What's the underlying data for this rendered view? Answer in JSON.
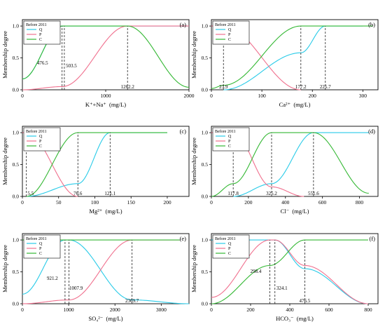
{
  "figure": {
    "legend_title": "Before 2011",
    "ylabel": "Membership degree",
    "colors": {
      "Q": "#29cbe8",
      "P": "#f0708e",
      "C": "#34b834"
    }
  },
  "chart_data": [
    {
      "id": "a",
      "panel_label": "(a)",
      "type": "line",
      "xlabel": "K⁺+Na⁺ (mg/L)",
      "xlim": [
        0,
        2000
      ],
      "ylim": [
        0,
        1.1
      ],
      "xticks": [
        0,
        1000,
        2000
      ],
      "yticks": [
        "0.0",
        "0.5",
        "1.0"
      ],
      "series": [
        {
          "name": "Q",
          "color": "#29cbe8",
          "values": [
            [
              0,
              0.17
            ],
            [
              476.5,
              1.0
            ],
            [
              503.5,
              1.0
            ],
            [
              1262.2,
              1.0
            ],
            [
              2000,
              1.0
            ]
          ]
        },
        {
          "name": "P",
          "color": "#f0708e",
          "values": [
            [
              0,
              0.0
            ],
            [
              476.5,
              0.05
            ],
            [
              1262.2,
              1.0
            ],
            [
              2000,
              1.0
            ]
          ]
        },
        {
          "name": "C",
          "color": "#34b834",
          "values": [
            [
              0,
              0.17
            ],
            [
              476.5,
              1.0
            ],
            [
              503.5,
              1.0
            ],
            [
              1262.2,
              1.0
            ],
            [
              2000,
              0.04
            ]
          ]
        }
      ],
      "verticals": [
        "476.5",
        "503.5",
        "1262.2"
      ],
      "annotations": [
        "476.5",
        "503.5",
        "1262.2"
      ]
    },
    {
      "id": "b",
      "panel_label": "(b)",
      "type": "line",
      "xlabel": "Ca²⁺ (mg/L)",
      "xlim": [
        0,
        330
      ],
      "ylim": [
        0,
        1.1
      ],
      "xticks": [
        0,
        100,
        200,
        300
      ],
      "yticks": [
        "0.0",
        "0.5",
        "1.0"
      ],
      "series": [
        {
          "name": "Q",
          "color": "#29cbe8",
          "values": [
            [
              23.9,
              0.0
            ],
            [
              177.2,
              0.58
            ],
            [
              225.7,
              1.0
            ],
            [
              300,
              1.0
            ]
          ]
        },
        {
          "name": "P",
          "color": "#f0708e",
          "values": [
            [
              0,
              1.0
            ],
            [
              23.9,
              1.0
            ],
            [
              177.2,
              0.0
            ]
          ]
        },
        {
          "name": "C",
          "color": "#34b834",
          "values": [
            [
              0,
              0.02
            ],
            [
              23.9,
              0.07
            ],
            [
              177.2,
              1.0
            ],
            [
              225.7,
              1.0
            ],
            [
              320,
              1.0
            ]
          ]
        }
      ],
      "verticals": [
        "23.9",
        "177.2",
        "225.7"
      ],
      "annotations": [
        "23.9",
        "177.2",
        "225.7"
      ]
    },
    {
      "id": "c",
      "panel_label": "(c)",
      "type": "line",
      "xlabel": "Mg²⁺ (mg/L)",
      "xlim": [
        0,
        230
      ],
      "ylim": [
        0,
        1.1
      ],
      "xticks": [
        0,
        50,
        100,
        150,
        200
      ],
      "yticks": [
        "0.0",
        "0.5",
        "1.0"
      ],
      "series": [
        {
          "name": "Q",
          "color": "#29cbe8",
          "values": [
            [
              5.5,
              0.0
            ],
            [
              76.6,
              0.2
            ],
            [
              121.1,
              1.0
            ],
            [
              200,
              1.0
            ]
          ]
        },
        {
          "name": "P",
          "color": "#f0708e",
          "values": [
            [
              0,
              1.0
            ],
            [
              5.5,
              1.0
            ],
            [
              76.6,
              0.0
            ]
          ]
        },
        {
          "name": "C",
          "color": "#34b834",
          "values": [
            [
              5.5,
              0.0
            ],
            [
              76.6,
              1.0
            ],
            [
              121.1,
              1.0
            ],
            [
              200,
              1.0
            ]
          ]
        }
      ],
      "verticals": [
        "5.5",
        "76.6",
        "121.1"
      ],
      "annotations": [
        "5.5",
        "76.6",
        "121.1"
      ]
    },
    {
      "id": "d",
      "panel_label": "(d)",
      "type": "line",
      "xlabel": "Cl⁻ (mg/L)",
      "xlim": [
        0,
        900
      ],
      "ylim": [
        0,
        1.1
      ],
      "xticks": [
        0,
        200,
        400,
        600,
        800
      ],
      "yticks": [
        "0.0",
        "0.5",
        "1.0"
      ],
      "series": [
        {
          "name": "Q",
          "color": "#29cbe8",
          "values": [
            [
              117.8,
              0.0
            ],
            [
              325.2,
              0.2
            ],
            [
              551.6,
              1.0
            ],
            [
              850,
              1.0
            ]
          ]
        },
        {
          "name": "P",
          "color": "#f0708e",
          "values": [
            [
              0,
              1.0
            ],
            [
              117.8,
              1.0
            ],
            [
              325.2,
              0.15
            ],
            [
              500,
              0.0
            ]
          ]
        },
        {
          "name": "C",
          "color": "#34b834",
          "values": [
            [
              0,
              0.0
            ],
            [
              117.8,
              0.2
            ],
            [
              325.2,
              1.0
            ],
            [
              551.6,
              1.0
            ],
            [
              850,
              0.05
            ]
          ]
        }
      ],
      "verticals": [
        "117.8",
        "325.2",
        "551.6"
      ],
      "annotations": [
        "117.8",
        "325.2",
        "551.6"
      ]
    },
    {
      "id": "e",
      "panel_label": "(e)",
      "type": "line",
      "xlabel": "SO₄²⁻ (mg/L)",
      "xlim": [
        0,
        3600
      ],
      "ylim": [
        0,
        1.1
      ],
      "xticks": [
        0,
        1000,
        2000,
        3000
      ],
      "yticks": [
        "0.0",
        "0.5",
        "1.0"
      ],
      "series": [
        {
          "name": "Q",
          "color": "#29cbe8",
          "values": [
            [
              0,
              0.15
            ],
            [
              921.2,
              1.0
            ],
            [
              1007.9,
              1.0
            ],
            [
              2369.7,
              0.06
            ],
            [
              3600,
              0.0
            ]
          ]
        },
        {
          "name": "P",
          "color": "#f0708e",
          "values": [
            [
              0,
              0.0
            ],
            [
              1007.9,
              0.06
            ],
            [
              2369.7,
              1.0
            ],
            [
              3400,
              1.0
            ]
          ]
        },
        {
          "name": "C",
          "color": "#34b834",
          "values": [
            [
              0,
              1.0
            ],
            [
              3400,
              1.0
            ]
          ]
        }
      ],
      "verticals": [
        "921.2",
        "1007.9",
        "2369.7"
      ],
      "annotations": [
        "921.2",
        "1007.9",
        "2369.7"
      ]
    },
    {
      "id": "f",
      "panel_label": "(f)",
      "type": "line",
      "xlabel": "HCO₃⁻ (mg/L)",
      "xlim": [
        0,
        850
      ],
      "ylim": [
        0,
        1.1
      ],
      "xticks": [
        0,
        200,
        400,
        600,
        800
      ],
      "yticks": [
        "0.0",
        "0.5",
        "1.0"
      ],
      "series": [
        {
          "name": "Q",
          "color": "#29cbe8",
          "values": [
            [
              0,
              1.0
            ],
            [
              298.4,
              1.0
            ],
            [
              324.1,
              1.0
            ],
            [
              476.5,
              0.55
            ],
            [
              800,
              0.0
            ]
          ]
        },
        {
          "name": "P",
          "color": "#f0708e",
          "values": [
            [
              0,
              0.1
            ],
            [
              298.4,
              1.0
            ],
            [
              324.1,
              1.0
            ],
            [
              476.5,
              0.6
            ],
            [
              800,
              0.0
            ]
          ]
        },
        {
          "name": "C",
          "color": "#34b834",
          "values": [
            [
              0,
              0.0
            ],
            [
              298.4,
              0.6
            ],
            [
              476.5,
              1.0
            ],
            [
              800,
              1.0
            ]
          ]
        }
      ],
      "verticals": [
        "298.4",
        "324.1",
        "476.5"
      ],
      "annotations": [
        "298.4",
        "324.1",
        "476.5"
      ]
    }
  ]
}
